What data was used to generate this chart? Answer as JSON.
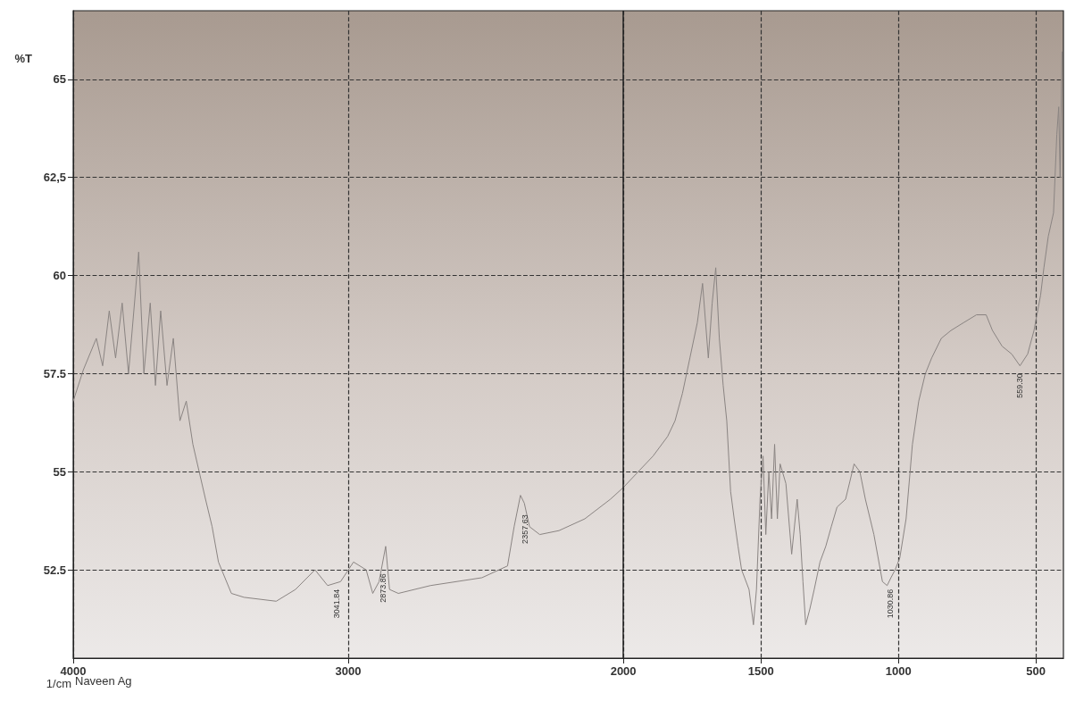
{
  "chart_data": {
    "type": "line",
    "xlabel": "1/cm",
    "ylabel": "%T",
    "x": [
      4000,
      3963,
      3916,
      3893,
      3869,
      3846,
      3822,
      3799,
      3776,
      3762,
      3743,
      3720,
      3701,
      3682,
      3659,
      3636,
      3612,
      3589,
      3565,
      3542,
      3519,
      3495,
      3472,
      3425,
      3379,
      3262,
      3192,
      3121,
      3075,
      3028,
      2981,
      2935,
      2911,
      2888,
      2864,
      2850,
      2818,
      2701,
      2514,
      2421,
      2397,
      2374,
      2360,
      2341,
      2304,
      2234,
      2140,
      2047,
      2000,
      1946,
      1892,
      1839,
      1812,
      1785,
      1758,
      1731,
      1712,
      1691,
      1677,
      1664,
      1651,
      1637,
      1624,
      1610,
      1597,
      1583,
      1570,
      1543,
      1527,
      1516,
      1503,
      1492,
      1482,
      1471,
      1461,
      1450,
      1440,
      1430,
      1409,
      1388,
      1368,
      1357,
      1347,
      1337,
      1322,
      1306,
      1285,
      1264,
      1244,
      1223,
      1192,
      1161,
      1140,
      1120,
      1089,
      1058,
      1041,
      1027,
      1012,
      995,
      972,
      949,
      926,
      902,
      879,
      844,
      809,
      763,
      716,
      681,
      658,
      623,
      588,
      558,
      530,
      507,
      483,
      471,
      455,
      436,
      424,
      417,
      412,
      405
    ],
    "series": [
      {
        "color": "#8a8482",
        "values": [
          56.8,
          57.6,
          58.4,
          57.7,
          59.1,
          57.9,
          59.3,
          57.5,
          59.4,
          60.6,
          57.5,
          59.3,
          57.2,
          59.1,
          57.2,
          58.4,
          56.3,
          56.8,
          55.7,
          55.0,
          54.3,
          53.6,
          52.7,
          51.9,
          51.8,
          51.7,
          52.0,
          52.5,
          52.1,
          52.2,
          52.7,
          52.5,
          51.9,
          52.2,
          53.1,
          52.0,
          51.9,
          52.1,
          52.3,
          52.6,
          53.6,
          54.4,
          54.2,
          53.6,
          53.4,
          53.5,
          53.8,
          54.3,
          54.6,
          55.0,
          55.4,
          55.9,
          56.3,
          57.0,
          57.9,
          58.8,
          59.8,
          57.9,
          59.3,
          60.2,
          58.4,
          57.2,
          56.3,
          54.5,
          53.8,
          53.1,
          52.5,
          52.0,
          51.1,
          52.0,
          54.3,
          55.4,
          53.4,
          55.0,
          53.8,
          55.7,
          53.8,
          55.2,
          54.7,
          52.9,
          54.3,
          53.4,
          52.2,
          51.1,
          51.5,
          52.0,
          52.7,
          53.1,
          53.6,
          54.1,
          54.3,
          55.2,
          55.0,
          54.3,
          53.4,
          52.2,
          52.1,
          52.3,
          52.5,
          52.8,
          53.8,
          55.7,
          56.8,
          57.5,
          57.9,
          58.4,
          58.6,
          58.8,
          59.0,
          59.0,
          58.6,
          58.2,
          58.0,
          57.7,
          58.0,
          58.6,
          59.5,
          60.2,
          61.0,
          61.6,
          63.6,
          64.3,
          62.5,
          65.7
        ]
      }
    ],
    "xlim": [
      4000,
      400
    ],
    "xticks": [
      4000,
      3000,
      2000,
      1500,
      1000,
      500
    ],
    "ylim": [
      50.25,
      66.75
    ],
    "yticks": [
      {
        "value": 52.5,
        "label": "52.5"
      },
      55,
      {
        "value": 57.5,
        "label": "57.5"
      },
      60,
      {
        "value": 62.5,
        "label": "62,5"
      },
      65
    ],
    "grid": true,
    "marker": "none",
    "line_style": "solid",
    "ref_lines": [
      {
        "axis": "x",
        "value": 2000,
        "color": "#222222",
        "line_style": "solid"
      }
    ],
    "annotations": [
      {
        "text": "3041.84",
        "x": 3041.84,
        "y": 52.2
      },
      {
        "text": "2873.86",
        "x": 2873.86,
        "y": 52.6
      },
      {
        "text": "2357.63",
        "x": 2357.63,
        "y": 54.1
      },
      {
        "text": "1030.86",
        "x": 1030.86,
        "y": 52.2
      },
      {
        "text": "559.30",
        "x": 559.3,
        "y": 57.7
      },
      "Naveen Ag"
    ]
  }
}
